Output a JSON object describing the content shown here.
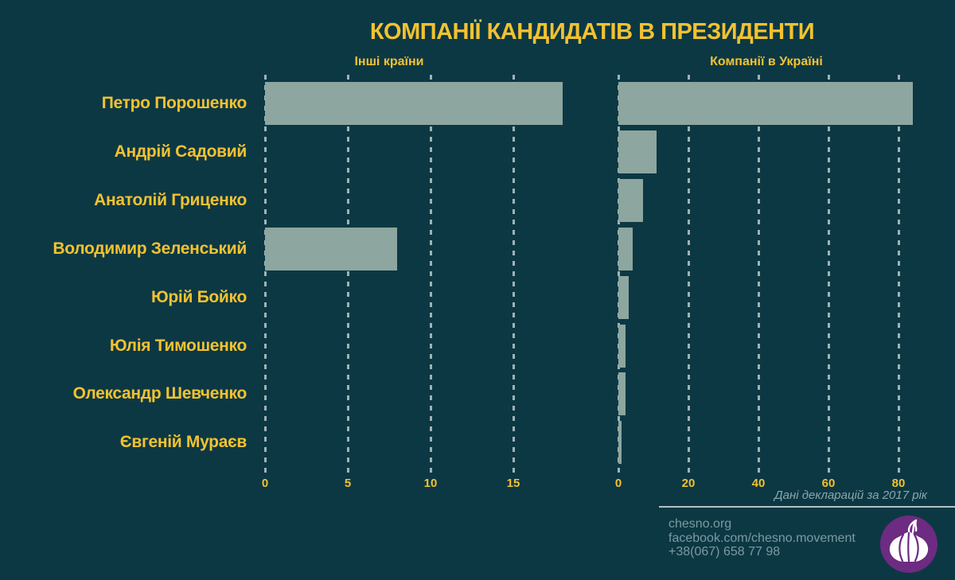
{
  "title": "КОМПАНІЇ КАНДИДАТІВ В ПРЕЗИДЕНТИ",
  "chart_data": {
    "type": "bar",
    "orientation": "horizontal",
    "categories": [
      "Петро Порошенко",
      "Андрій Садовий",
      "Анатолій Гриценко",
      "Володимир Зеленський",
      "Юрій Бойко",
      "Юлія Тимошенко",
      "Олександр Шевченко",
      "Євгеній Мураєв"
    ],
    "series": [
      {
        "name": "Інші країни",
        "values": [
          18,
          0,
          0,
          8,
          0,
          0,
          0,
          0
        ],
        "ticks": [
          0,
          5,
          10,
          15
        ],
        "xlim": [
          0,
          20
        ]
      },
      {
        "name": "Компанії в Україні",
        "values": [
          84,
          11,
          7,
          4,
          3,
          2,
          2,
          1
        ],
        "ticks": [
          0,
          20,
          40,
          60,
          80
        ],
        "xlim": [
          0,
          86
        ]
      }
    ],
    "grid": "dashed-vertical",
    "legend_position": "none",
    "source_note": "Дані декларацій за 2017 рік"
  },
  "footer": {
    "note": "Дані декларацій за 2017 рік",
    "links": [
      "chesno.org",
      "facebook.com/chesno.movement",
      "+38(067) 658 77 98"
    ]
  },
  "icons": {
    "logo": "garlic-logo-icon"
  },
  "colors": {
    "background": "#0c3844",
    "bar": "#8da69f",
    "accent_yellow": "#f2c230",
    "gridline": "#c4d2d2",
    "footer_text": "#7c9aa0",
    "logo_purple": "#6d2b81"
  }
}
